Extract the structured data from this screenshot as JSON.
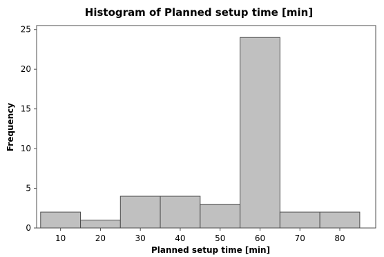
{
  "chart_data": {
    "type": "bar",
    "title": "Histogram of Planned setup time [min]",
    "xlabel": "Planned setup time [min]",
    "ylabel": "Frequency",
    "bin_edges": [
      5,
      15,
      25,
      35,
      45,
      55,
      65,
      75,
      85
    ],
    "values": [
      2,
      1,
      4,
      4,
      3,
      24,
      2,
      2
    ],
    "xticks": [
      10,
      20,
      30,
      40,
      50,
      60,
      70,
      80
    ],
    "yticks": [
      0,
      5,
      10,
      15,
      20,
      25
    ],
    "xlim": [
      4,
      89
    ],
    "ylim": [
      0,
      25.5
    ],
    "grid": false,
    "colors": {
      "bar_fill": "#c0c0c0",
      "bar_edge": "#4d4d4d"
    }
  }
}
